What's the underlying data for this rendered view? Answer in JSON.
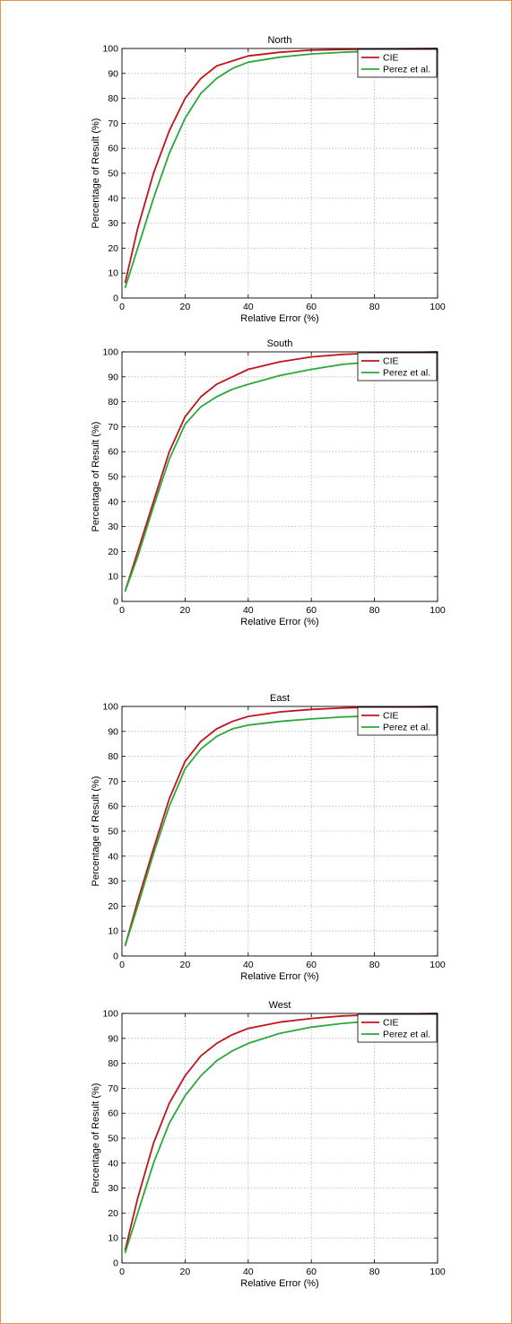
{
  "colors": {
    "frame_border": "#e8914a",
    "cie": "#c0141c",
    "perez": "#2aa83a",
    "grid": "#b5b5b5"
  },
  "chart_data": [
    {
      "type": "line",
      "title": "North",
      "xlabel": "Relative Error (%)",
      "ylabel": "Percentage of Result (%)",
      "xlim": [
        0,
        100
      ],
      "ylim": [
        0,
        100
      ],
      "xticks": [
        0,
        20,
        40,
        60,
        80,
        100
      ],
      "yticks": [
        0,
        10,
        20,
        30,
        40,
        50,
        60,
        70,
        80,
        90,
        100
      ],
      "grid": true,
      "legend": "top-right",
      "series": [
        {
          "name": "CIE",
          "color": "#c0141c",
          "x": [
            1,
            5,
            10,
            15,
            20,
            25,
            30,
            35,
            40,
            50,
            60,
            70,
            80,
            90,
            100
          ],
          "y": [
            6,
            28,
            50,
            67,
            80,
            88,
            93,
            95,
            97,
            98.5,
            99.3,
            99.6,
            99.8,
            99.9,
            100
          ]
        },
        {
          "name": "Perez et al.",
          "color": "#2aa83a",
          "x": [
            1,
            5,
            10,
            15,
            20,
            25,
            30,
            35,
            40,
            50,
            60,
            70,
            80,
            90,
            100
          ],
          "y": [
            4,
            20,
            40,
            58,
            72,
            82,
            88,
            92,
            94.5,
            96.5,
            97.8,
            98.5,
            99,
            99.3,
            99.5
          ]
        }
      ]
    },
    {
      "type": "line",
      "title": "South",
      "xlabel": "Relative Error (%)",
      "ylabel": "Percentage of Result (%)",
      "xlim": [
        0,
        100
      ],
      "ylim": [
        0,
        100
      ],
      "xticks": [
        0,
        20,
        40,
        60,
        80,
        100
      ],
      "yticks": [
        0,
        10,
        20,
        30,
        40,
        50,
        60,
        70,
        80,
        90,
        100
      ],
      "grid": true,
      "legend": "top-right",
      "series": [
        {
          "name": "CIE",
          "color": "#c0141c",
          "x": [
            1,
            5,
            10,
            15,
            20,
            25,
            30,
            35,
            40,
            50,
            60,
            70,
            80,
            90,
            100
          ],
          "y": [
            4,
            20,
            40,
            60,
            74,
            82,
            87,
            90,
            93,
            96,
            98,
            99,
            99.5,
            99.7,
            100
          ]
        },
        {
          "name": "Perez et al.",
          "color": "#2aa83a",
          "x": [
            1,
            5,
            10,
            15,
            20,
            25,
            30,
            35,
            40,
            50,
            60,
            70,
            80,
            90,
            100
          ],
          "y": [
            4,
            18,
            38,
            57,
            71,
            78,
            82,
            85,
            87,
            90.5,
            93,
            95,
            96,
            96.8,
            97
          ]
        }
      ]
    },
    {
      "type": "line",
      "title": "East",
      "xlabel": "Relative Error (%)",
      "ylabel": "Percentage of Result (%)",
      "xlim": [
        0,
        100
      ],
      "ylim": [
        0,
        100
      ],
      "xticks": [
        0,
        20,
        40,
        60,
        80,
        100
      ],
      "yticks": [
        0,
        10,
        20,
        30,
        40,
        50,
        60,
        70,
        80,
        90,
        100
      ],
      "grid": true,
      "legend": "top-right",
      "series": [
        {
          "name": "CIE",
          "color": "#c0141c",
          "x": [
            1,
            5,
            10,
            15,
            20,
            25,
            30,
            35,
            40,
            50,
            60,
            70,
            80,
            90,
            100
          ],
          "y": [
            4,
            22,
            43,
            63,
            78,
            86,
            91,
            94,
            96,
            97.8,
            98.8,
            99.4,
            99.7,
            99.8,
            100
          ]
        },
        {
          "name": "Perez et al.",
          "color": "#2aa83a",
          "x": [
            1,
            5,
            10,
            15,
            20,
            25,
            30,
            35,
            40,
            50,
            60,
            70,
            80,
            90,
            100
          ],
          "y": [
            4,
            20,
            41,
            60,
            75,
            83,
            88,
            91,
            92.5,
            94,
            95,
            95.8,
            96.2,
            96.5,
            96.8
          ]
        }
      ]
    },
    {
      "type": "line",
      "title": "West",
      "xlabel": "Relative Error (%)",
      "ylabel": "Percentage of Result (%)",
      "xlim": [
        0,
        100
      ],
      "ylim": [
        0,
        100
      ],
      "xticks": [
        0,
        20,
        40,
        60,
        80,
        100
      ],
      "yticks": [
        0,
        10,
        20,
        30,
        40,
        50,
        60,
        70,
        80,
        90,
        100
      ],
      "grid": true,
      "legend": "top-right",
      "series": [
        {
          "name": "CIE",
          "color": "#c0141c",
          "x": [
            1,
            5,
            10,
            15,
            20,
            25,
            30,
            35,
            40,
            50,
            60,
            70,
            80,
            90,
            100
          ],
          "y": [
            5,
            26,
            48,
            64,
            75,
            83,
            88,
            91.5,
            94,
            96.5,
            98,
            99,
            99.5,
            99.8,
            100
          ]
        },
        {
          "name": "Perez et al.",
          "color": "#2aa83a",
          "x": [
            1,
            5,
            10,
            15,
            20,
            25,
            30,
            35,
            40,
            50,
            60,
            70,
            80,
            90,
            100
          ],
          "y": [
            4,
            20,
            40,
            56,
            67,
            75,
            81,
            85,
            88,
            92,
            94.5,
            96,
            97,
            97.5,
            98
          ]
        }
      ]
    }
  ]
}
